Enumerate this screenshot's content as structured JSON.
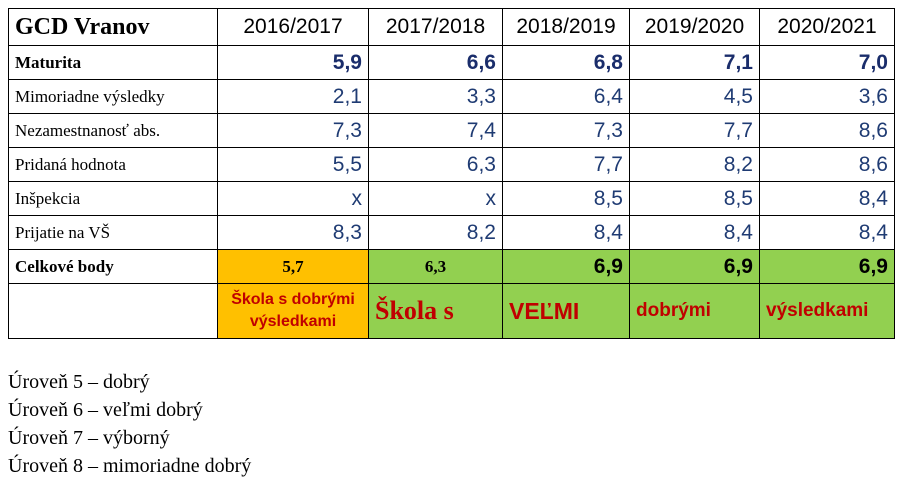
{
  "table": {
    "title": "GCD Vranov",
    "years": [
      "2016/2017",
      "2017/2018",
      "2018/2019",
      "2019/2020",
      "2020/2021"
    ],
    "rows": [
      {
        "label": "Maturita",
        "values": [
          "5,9",
          "6,6",
          "6,8",
          "7,1",
          "7,0"
        ]
      },
      {
        "label": "Mimoriadne výsledky",
        "values": [
          "2,1",
          "3,3",
          "6,4",
          "4,5",
          "3,6"
        ]
      },
      {
        "label": "Nezamestnanosť abs.",
        "values": [
          "7,3",
          "7,4",
          "7,3",
          "7,7",
          "8,6"
        ]
      },
      {
        "label": "Pridaná hodnota",
        "values": [
          "5,5",
          "6,3",
          "7,7",
          "8,2",
          "8,6"
        ]
      },
      {
        "label": "Inšpekcia",
        "values": [
          "x",
          "x",
          "8,5",
          "8,5",
          "8,4"
        ]
      },
      {
        "label": "Prijatie na VŠ",
        "values": [
          "8,3",
          "8,2",
          "8,4",
          "8,4",
          "8,4"
        ]
      }
    ],
    "total": {
      "label": "Celkové body",
      "values": [
        "5,7",
        "6,3",
        "6,9",
        "6,9",
        "6,9"
      ]
    },
    "verdict": {
      "orange_text": "Škola s dobrými výsledkami",
      "green_parts": [
        "Škola  s",
        "VEĽMI",
        "dobrými",
        "výsledkami"
      ]
    },
    "colors": {
      "orange": "#ffc000",
      "green": "#92d050",
      "verdict_red": "#c00000",
      "number_blue": "#1f3b73"
    }
  },
  "legend": [
    "Úroveň 5 – dobrý",
    "Úroveň 6 – veľmi dobrý",
    "Úroveň 7 – výborný",
    "Úroveň 8 – mimoriadne dobrý"
  ]
}
